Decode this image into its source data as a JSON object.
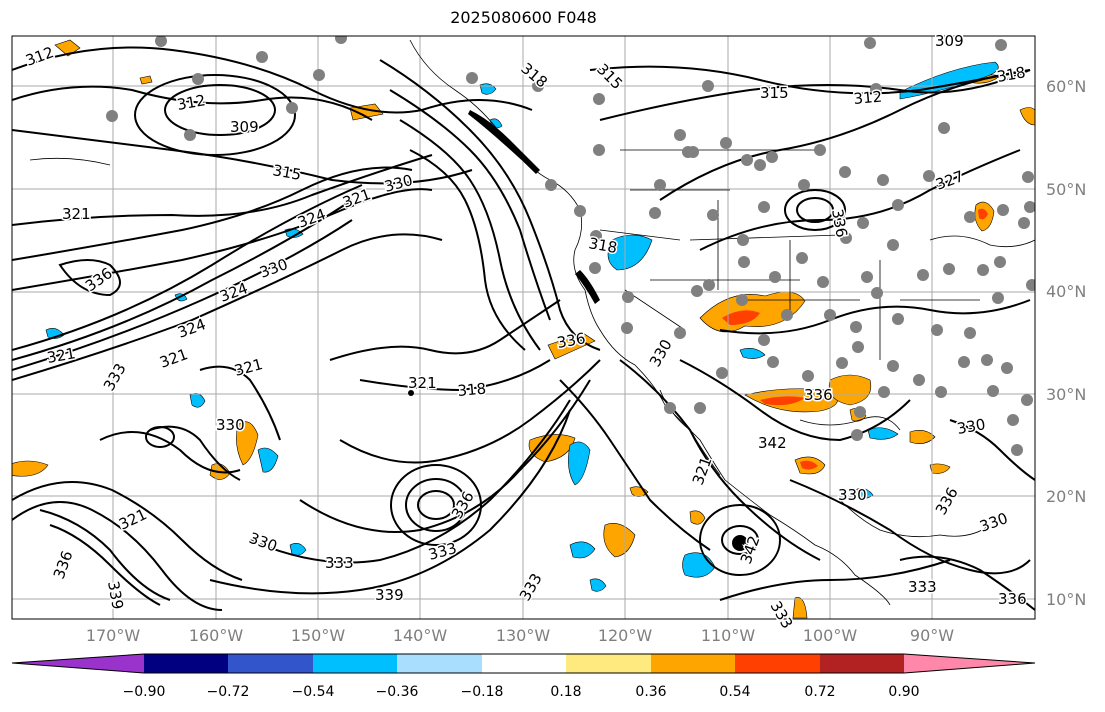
{
  "title": "2025080600 F048",
  "lat_labels": [
    "60°N",
    "50°N",
    "40°N",
    "30°N",
    "20°N",
    "10°N"
  ],
  "lon_labels": [
    "170°W",
    "160°W",
    "150°W",
    "140°W",
    "130°W",
    "120°W",
    "110°W",
    "100°W",
    "90°W"
  ],
  "colorbar": {
    "ticks": [
      "−0.90",
      "−0.72",
      "−0.54",
      "−0.36",
      "−0.18",
      "0.18",
      "0.36",
      "0.54",
      "0.72",
      "0.90"
    ],
    "colors": [
      "#9933cc",
      "#000080",
      "#3355cc",
      "#00bfff",
      "#aadeff",
      "#ffffff",
      "#ffea80",
      "#ffa500",
      "#ff4000",
      "#b22222",
      "#ff88aa"
    ]
  },
  "contour_labels": [
    "312",
    "312",
    "309",
    "315",
    "318",
    "315",
    "315",
    "312",
    "318",
    "309",
    "321",
    "327",
    "321",
    "330",
    "324",
    "318",
    "336",
    "330",
    "324",
    "324",
    "321",
    "321",
    "333",
    "321",
    "330",
    "321",
    "318",
    "336",
    "333",
    "321",
    "330",
    "336",
    "333",
    "336",
    "336",
    "342",
    "342",
    "336",
    "321",
    "333",
    "339",
    "330",
    "333",
    "339",
    "336",
    "333",
    "330",
    "330",
    "330",
    "336"
  ],
  "shading_colors": {
    "pos_light": "#ffa500",
    "pos_strong": "#ff4000",
    "neg": "#00bfff",
    "neg_light": "#aadeff"
  }
}
